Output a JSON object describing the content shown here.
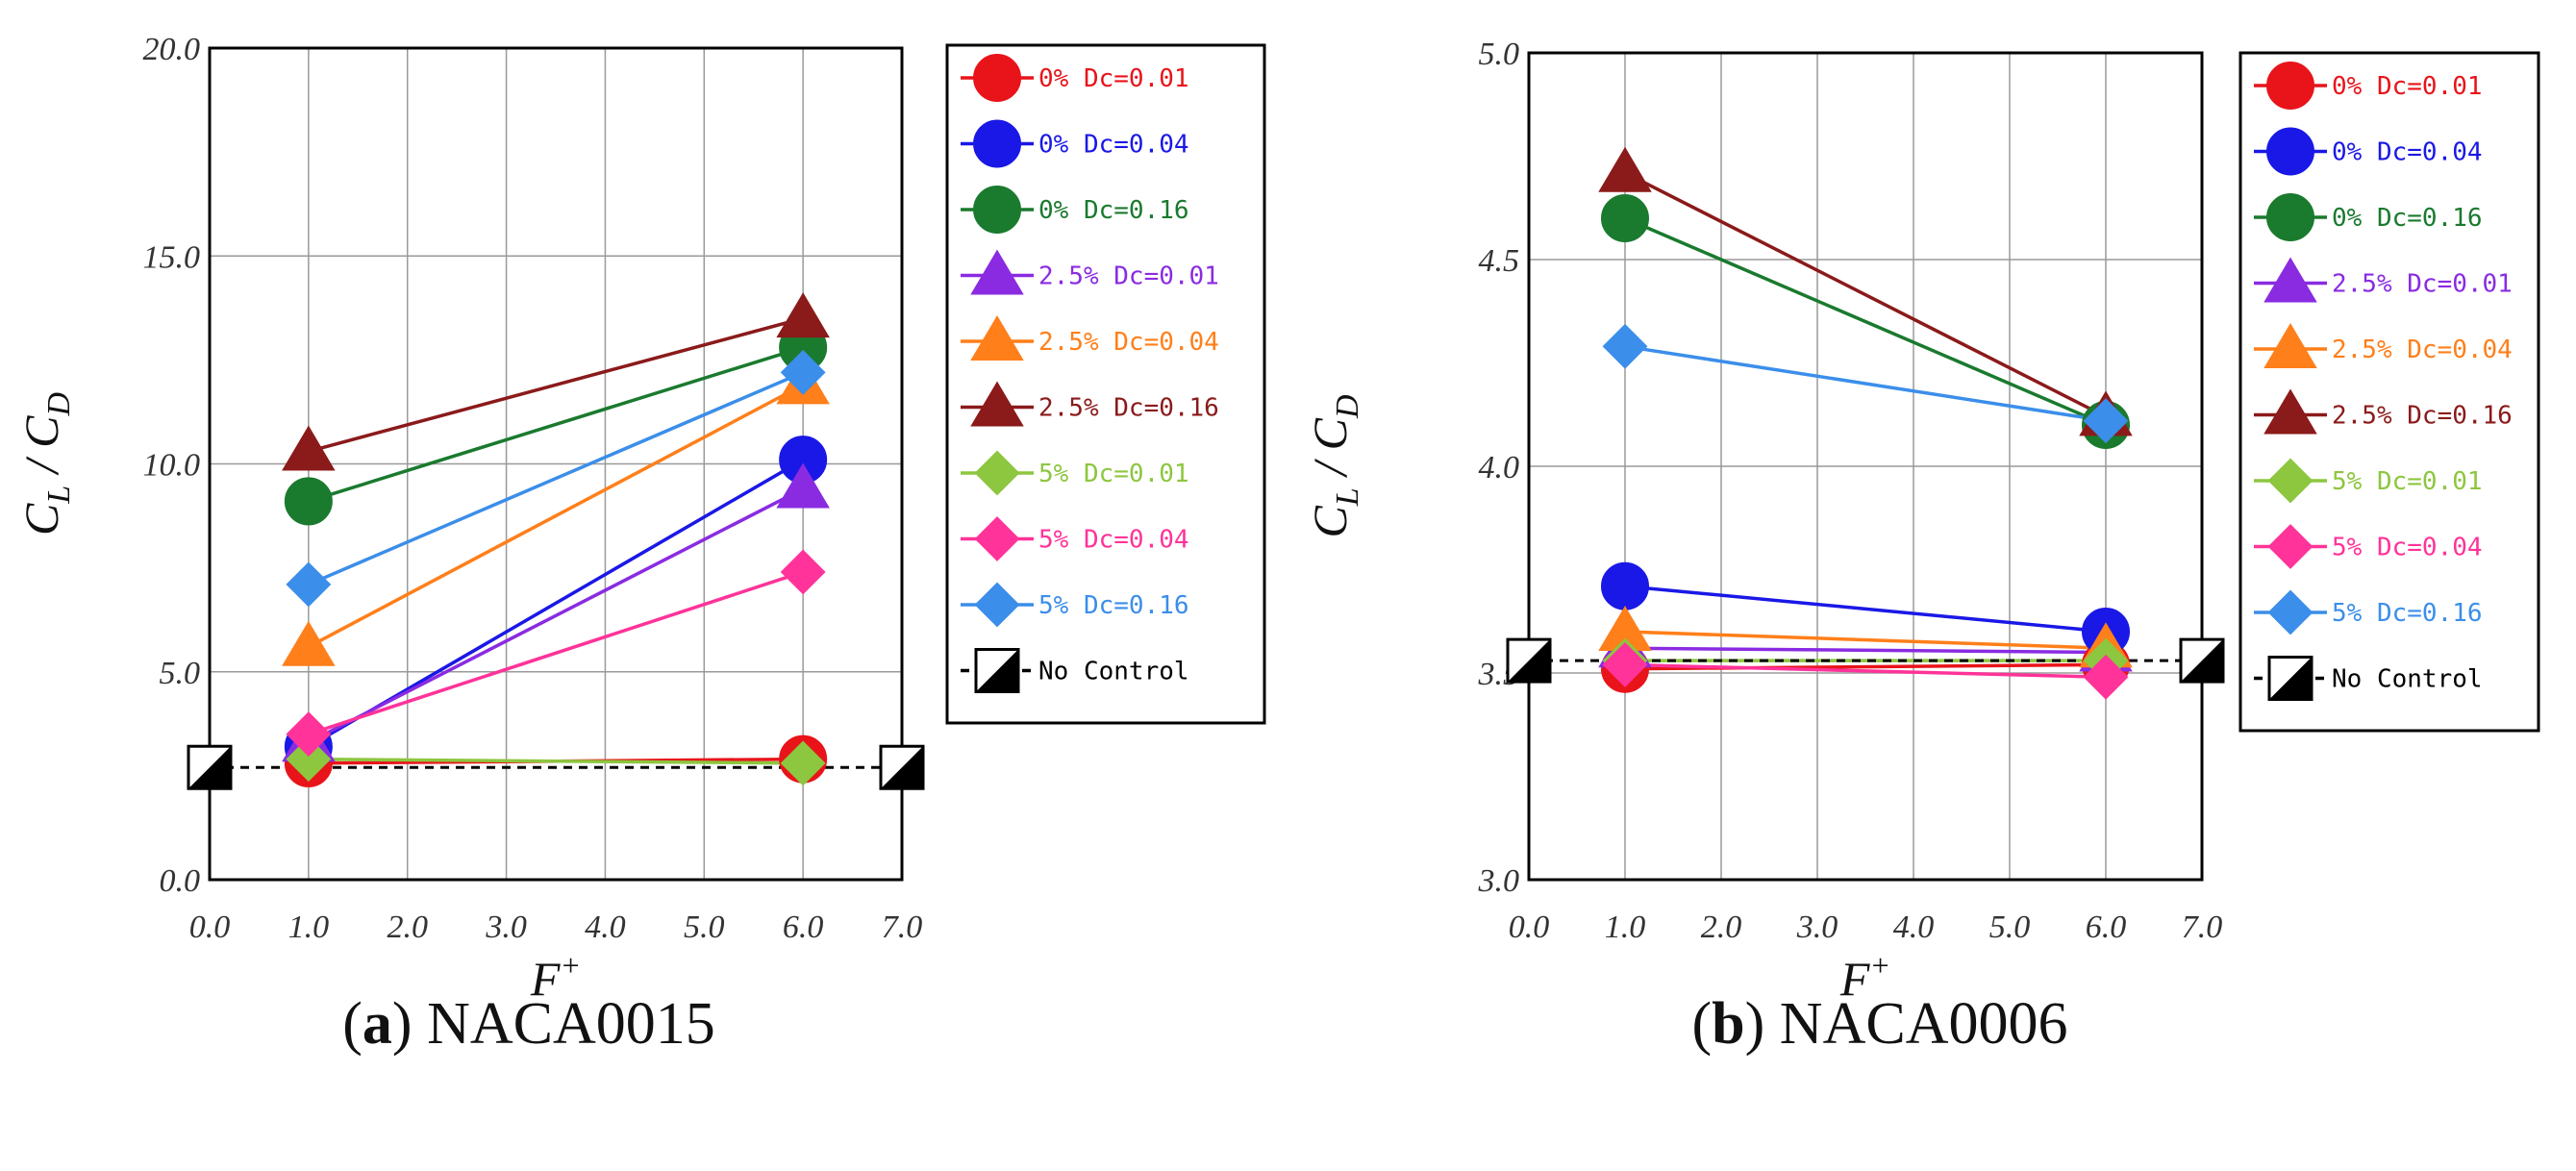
{
  "figure": {
    "charts": [
      {
        "id": "a",
        "caption_letter": "a",
        "caption_rest": " NACA0015",
        "caption_open": "(",
        "caption_close": ")"
      },
      {
        "id": "b",
        "caption_letter": "b",
        "caption_rest": " NACA0006",
        "caption_open": "(",
        "caption_close": ")"
      }
    ]
  },
  "chart_data": [
    {
      "type": "line",
      "title": "(a) NACA0015",
      "xlabel": "F+",
      "ylabel": "CL / CD",
      "xlim": [
        0,
        7
      ],
      "ylim": [
        0,
        20
      ],
      "xticks": [
        "0.0",
        "1.0",
        "2.0",
        "3.0",
        "4.0",
        "5.0",
        "6.0",
        "7.0"
      ],
      "yticks": [
        "0.0",
        "5.0",
        "10.0",
        "15.0",
        "20.0"
      ],
      "grid": true,
      "legend_position": "right",
      "series": [
        {
          "name": "0% Dc=0.01",
          "color": "#e8141a",
          "marker": "circle",
          "x": [
            1,
            6
          ],
          "y": [
            2.8,
            2.9
          ]
        },
        {
          "name": "0% Dc=0.04",
          "color": "#1a18e6",
          "marker": "circle",
          "x": [
            1,
            6
          ],
          "y": [
            3.2,
            10.1
          ]
        },
        {
          "name": "0% Dc=0.16",
          "color": "#1a7a2e",
          "marker": "circle",
          "x": [
            1,
            6
          ],
          "y": [
            9.1,
            12.8
          ]
        },
        {
          "name": "2.5% Dc=0.01",
          "color": "#8a2be2",
          "marker": "triangle",
          "x": [
            1,
            6
          ],
          "y": [
            3.3,
            9.4
          ]
        },
        {
          "name": "2.5% Dc=0.04",
          "color": "#ff7f1a",
          "marker": "triangle",
          "x": [
            1,
            6
          ],
          "y": [
            5.6,
            11.9
          ]
        },
        {
          "name": "2.5% Dc=0.16",
          "color": "#8b1a1a",
          "marker": "triangle",
          "x": [
            1,
            6
          ],
          "y": [
            10.3,
            13.5
          ]
        },
        {
          "name": "5% Dc=0.01",
          "color": "#8dc63f",
          "marker": "diamond",
          "x": [
            1,
            6
          ],
          "y": [
            2.9,
            2.8
          ]
        },
        {
          "name": "5% Dc=0.04",
          "color": "#ff3399",
          "marker": "diamond",
          "x": [
            1,
            6
          ],
          "y": [
            3.5,
            7.4
          ]
        },
        {
          "name": "5% Dc=0.16",
          "color": "#3b8eea",
          "marker": "diamond",
          "x": [
            1,
            6
          ],
          "y": [
            7.1,
            12.2
          ]
        },
        {
          "name": "No Control",
          "color": "#000000",
          "marker": "half-square",
          "dashed": true,
          "x": [
            0,
            7
          ],
          "y": [
            2.7,
            2.7
          ]
        }
      ]
    },
    {
      "type": "line",
      "title": "(b) NACA0006",
      "xlabel": "F+",
      "ylabel": "CL / CD",
      "xlim": [
        0,
        7
      ],
      "ylim": [
        3,
        5
      ],
      "xticks": [
        "0.0",
        "1.0",
        "2.0",
        "3.0",
        "4.0",
        "5.0",
        "6.0",
        "7.0"
      ],
      "yticks": [
        "3.0",
        "3.5",
        "4.0",
        "4.5",
        "5.0"
      ],
      "grid": true,
      "legend_position": "right",
      "series": [
        {
          "name": "0% Dc=0.01",
          "color": "#e8141a",
          "marker": "circle",
          "x": [
            1,
            6
          ],
          "y": [
            3.51,
            3.52
          ]
        },
        {
          "name": "0% Dc=0.04",
          "color": "#1a18e6",
          "marker": "circle",
          "x": [
            1,
            6
          ],
          "y": [
            3.71,
            3.6
          ]
        },
        {
          "name": "0% Dc=0.16",
          "color": "#1a7a2e",
          "marker": "circle",
          "x": [
            1,
            6
          ],
          "y": [
            4.6,
            4.1
          ]
        },
        {
          "name": "2.5% Dc=0.01",
          "color": "#8a2be2",
          "marker": "triangle",
          "x": [
            1,
            6
          ],
          "y": [
            3.56,
            3.55
          ]
        },
        {
          "name": "2.5% Dc=0.04",
          "color": "#ff7f1a",
          "marker": "triangle",
          "x": [
            1,
            6
          ],
          "y": [
            3.6,
            3.56
          ]
        },
        {
          "name": "2.5% Dc=0.16",
          "color": "#8b1a1a",
          "marker": "triangle",
          "x": [
            1,
            6
          ],
          "y": [
            4.71,
            4.12
          ]
        },
        {
          "name": "5% Dc=0.01",
          "color": "#8dc63f",
          "marker": "diamond",
          "x": [
            1,
            6
          ],
          "y": [
            3.53,
            3.53
          ]
        },
        {
          "name": "5% Dc=0.04",
          "color": "#ff3399",
          "marker": "diamond",
          "x": [
            1,
            6
          ],
          "y": [
            3.52,
            3.49
          ]
        },
        {
          "name": "5% Dc=0.16",
          "color": "#3b8eea",
          "marker": "diamond",
          "x": [
            1,
            6
          ],
          "y": [
            4.29,
            4.11
          ]
        },
        {
          "name": "No Control",
          "color": "#000000",
          "marker": "half-square",
          "dashed": true,
          "x": [
            0,
            7
          ],
          "y": [
            3.53,
            3.53
          ]
        }
      ]
    }
  ]
}
